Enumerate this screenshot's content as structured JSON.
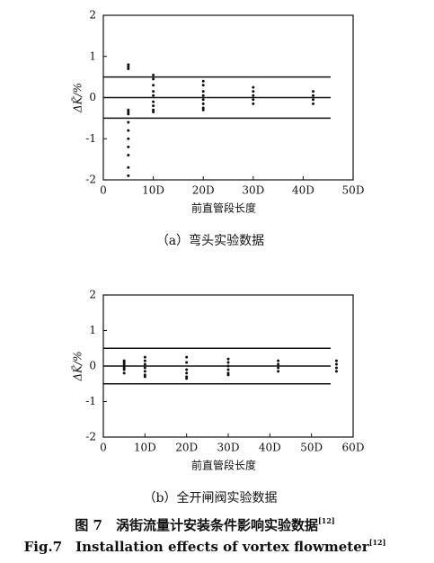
{
  "chart_data": [
    {
      "type": "scatter",
      "subtitle": "（a）弯头实验数据",
      "x_label": "前直管段长度",
      "y_label": "ΔK̄/%",
      "x": [
        5,
        5,
        5,
        5,
        5,
        5,
        5,
        5,
        5,
        5,
        5,
        5,
        5,
        10,
        10,
        10,
        10,
        10,
        10,
        10,
        10,
        10,
        20,
        20,
        20,
        20,
        20,
        20,
        20,
        20,
        30,
        30,
        30,
        30,
        30,
        42,
        42,
        42,
        42
      ],
      "values": [
        0.8,
        0.75,
        0.7,
        -0.3,
        -0.35,
        -0.4,
        -0.6,
        -0.8,
        -1.0,
        -1.2,
        -1.4,
        -1.7,
        -1.9,
        0.55,
        0.45,
        0.3,
        0.15,
        0.05,
        -0.1,
        -0.2,
        -0.3,
        -0.35,
        0.4,
        0.3,
        0.15,
        0.05,
        -0.05,
        -0.15,
        -0.25,
        -0.3,
        0.25,
        0.15,
        0.05,
        -0.05,
        -0.15,
        0.15,
        0.05,
        -0.05,
        -0.15
      ],
      "color": "#111111",
      "hlines": [
        0.5,
        0,
        -0.5
      ],
      "xlim": [
        0,
        50
      ],
      "xticks": [
        0,
        {
          "value": 10,
          "label": "10D"
        },
        {
          "value": 20,
          "label": "20D"
        },
        {
          "value": 30,
          "label": "30D"
        },
        {
          "value": 40,
          "label": "40D"
        },
        {
          "value": 50,
          "label": "50D"
        }
      ],
      "ylim": [
        -2,
        2
      ],
      "yticks": [
        -2,
        -1,
        0,
        1,
        2
      ]
    },
    {
      "type": "scatter",
      "subtitle": "（b）全开闸阀实验数据",
      "x_label": "前直管段长度",
      "y_label": "ΔK̄/%",
      "x": [
        5,
        5,
        5,
        5,
        5,
        5,
        5,
        10,
        10,
        10,
        10,
        10,
        10,
        10,
        20,
        20,
        20,
        20,
        20,
        20,
        30,
        30,
        30,
        30,
        30,
        30,
        42,
        42,
        42,
        42,
        56,
        56,
        56,
        56
      ],
      "values": [
        0.15,
        0.1,
        0.05,
        0,
        -0.05,
        -0.1,
        -0.2,
        0.25,
        0.15,
        0.05,
        -0.05,
        -0.15,
        -0.25,
        -0.3,
        0.25,
        0.1,
        -0.1,
        -0.2,
        -0.3,
        -0.35,
        0.2,
        0.1,
        0,
        -0.1,
        -0.2,
        -0.25,
        0.15,
        0.05,
        -0.05,
        -0.15,
        0.15,
        0.05,
        -0.05,
        -0.15
      ],
      "color": "#111111",
      "hlines": [
        0.5,
        0,
        -0.5
      ],
      "xlim": [
        0,
        60
      ],
      "xticks": [
        0,
        {
          "value": 10,
          "label": "10D"
        },
        {
          "value": 20,
          "label": "20D"
        },
        {
          "value": 30,
          "label": "30D"
        },
        {
          "value": 40,
          "label": "40D"
        },
        {
          "value": 50,
          "label": "50D"
        },
        {
          "value": 60,
          "label": "60D"
        }
      ],
      "ylim": [
        -2,
        2
      ],
      "yticks": [
        -2,
        -1,
        0,
        1,
        2
      ]
    }
  ],
  "caption": {
    "zh": "图 7　涡街流量计安装条件影响实验数据",
    "en": "Fig.7　Installation effects of vortex flowmeter",
    "ref": "[12]"
  }
}
